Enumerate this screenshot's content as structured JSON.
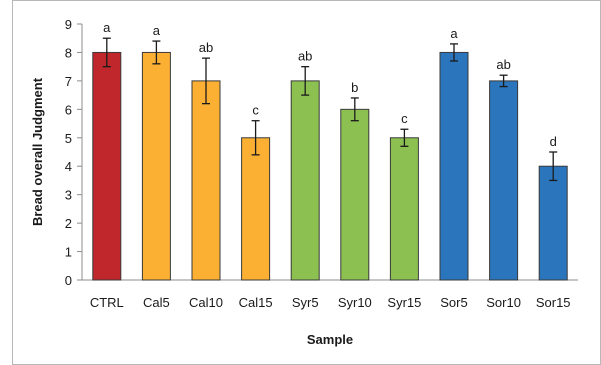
{
  "chart_data": {
    "type": "bar",
    "categories": [
      "CTRL",
      "Cal5",
      "Cal10",
      "Cal15",
      "Syr5",
      "Syr10",
      "Syr15",
      "Sor5",
      "Sor10",
      "Sor15"
    ],
    "values": [
      8,
      8,
      7,
      5,
      7,
      6,
      5,
      8,
      7,
      4
    ],
    "errors": [
      0.5,
      0.4,
      0.8,
      0.6,
      0.5,
      0.4,
      0.3,
      0.3,
      0.2,
      0.5
    ],
    "significance_labels": [
      "a",
      "a",
      "ab",
      "c",
      "ab",
      "b",
      "c",
      "a",
      "ab",
      "d"
    ],
    "bar_colors": [
      "#c0272d",
      "#fbb034",
      "#fbb034",
      "#fbb034",
      "#8cc152",
      "#8cc152",
      "#8cc152",
      "#2a75bb",
      "#2a75bb",
      "#2a75bb"
    ],
    "title": "",
    "xlabel": "Sample",
    "ylabel": "Bread overall Judgment",
    "ylim": [
      0,
      9
    ],
    "yticks": [
      0,
      1,
      2,
      3,
      4,
      5,
      6,
      7,
      8,
      9
    ],
    "grid": false,
    "legend": "none"
  }
}
